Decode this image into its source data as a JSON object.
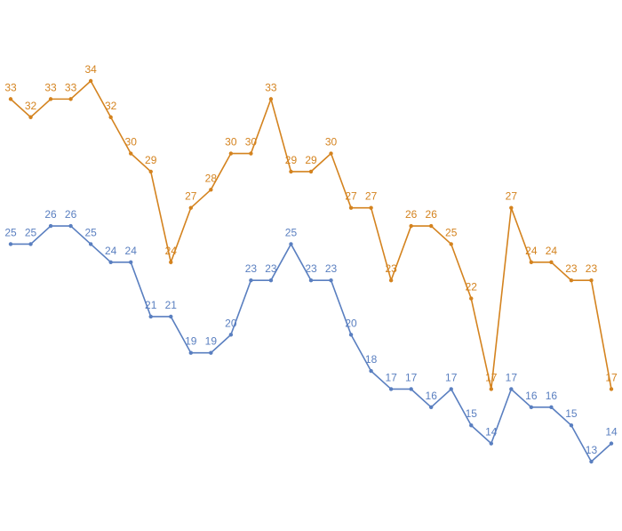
{
  "chart_data": {
    "type": "line",
    "series": [
      {
        "color": "#d4831f",
        "values": [
          33,
          32,
          33,
          33,
          34,
          32,
          30,
          29,
          24,
          27,
          28,
          30,
          30,
          33,
          29,
          29,
          30,
          27,
          27,
          23,
          26,
          26,
          25,
          22,
          17,
          27,
          24,
          24,
          23,
          23,
          17
        ]
      },
      {
        "color": "#5a7fc0",
        "values": [
          25,
          25,
          26,
          26,
          25,
          24,
          24,
          21,
          21,
          19,
          19,
          20,
          23,
          23,
          25,
          23,
          23,
          20,
          18,
          17,
          17,
          16,
          17,
          15,
          14,
          17,
          16,
          16,
          15,
          13,
          14
        ]
      }
    ]
  }
}
